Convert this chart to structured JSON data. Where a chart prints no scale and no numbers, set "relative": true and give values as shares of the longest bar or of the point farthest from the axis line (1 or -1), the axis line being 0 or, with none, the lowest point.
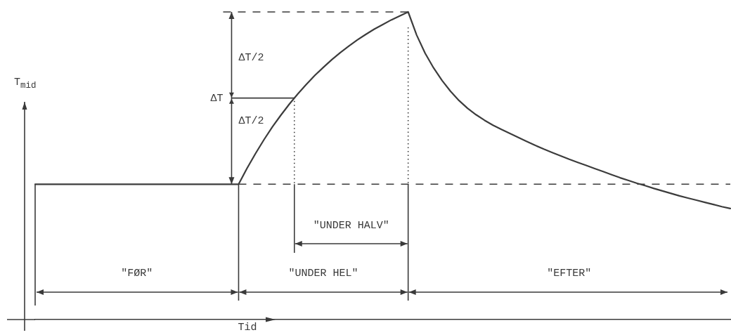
{
  "chart_data": {
    "type": "line",
    "relative": true,
    "xlabel": "Tid",
    "ylabel": "T$_{mid}$",
    "tick_labels": false,
    "categories": [
      null,
      null,
      null,
      null,
      null,
      null,
      null,
      null,
      null,
      null,
      null,
      null,
      null,
      null,
      null,
      null,
      null,
      null,
      null,
      null,
      null,
      null,
      null,
      null,
      null,
      null,
      null,
      null,
      null,
      null,
      null,
      null,
      null,
      null,
      null,
      null,
      null,
      null,
      null,
      null,
      null,
      null,
      null,
      null,
      null,
      null,
      null,
      null,
      null,
      null,
      null,
      null,
      null,
      null,
      null,
      null,
      null,
      null,
      null,
      null,
      null,
      null,
      null,
      null,
      null,
      null,
      null,
      null,
      null,
      null,
      null,
      null,
      null,
      null,
      null,
      null,
      null,
      null,
      null,
      null,
      null,
      null,
      null
    ],
    "series": [
      {
        "color": "#3c3c3c",
        "values": [
          0.44,
          0.44,
          0.44,
          0.44,
          0.44,
          0.44,
          0.44,
          0.44,
          0.44,
          0.44,
          0.44,
          0.44,
          0.44,
          0.44,
          0.44,
          0.44,
          0.44,
          0.44,
          0.44,
          0.44,
          0.44,
          0.44,
          0.44,
          0.44,
          0.44,
          0.492,
          0.54,
          0.585,
          0.627,
          0.665,
          0.701,
          0.734,
          0.765,
          0.794,
          0.82,
          0.845,
          0.868,
          0.889,
          0.909,
          0.927,
          0.944,
          0.959,
          0.974,
          0.987,
          1,
          0.925,
          0.866,
          0.818,
          0.777,
          0.742,
          0.712,
          0.687,
          0.666,
          0.648,
          0.632,
          0.618,
          0.605,
          0.592,
          0.579,
          0.566,
          0.554,
          0.543,
          0.532,
          0.521,
          0.511,
          0.501,
          0.491,
          0.481,
          0.471,
          0.461,
          0.452,
          0.443,
          0.435,
          0.426,
          0.418,
          0.41,
          0.402,
          0.395,
          0.388,
          0.381,
          0.374,
          0.367,
          0.361
        ]
      }
    ],
    "ref_lines": [
      {
        "axis": "y",
        "value": 1,
        "line_style": "dashed"
      },
      {
        "axis": "y",
        "value": 0.44,
        "line_style": "dashed"
      }
    ],
    "annotations": [
      "\"FØR\"",
      "\"UNDER HEL\"",
      "\"EFTER\"",
      "\"UNDER HALV\"",
      "ΔT",
      "ΔT/2",
      "ΔT/2"
    ]
  }
}
